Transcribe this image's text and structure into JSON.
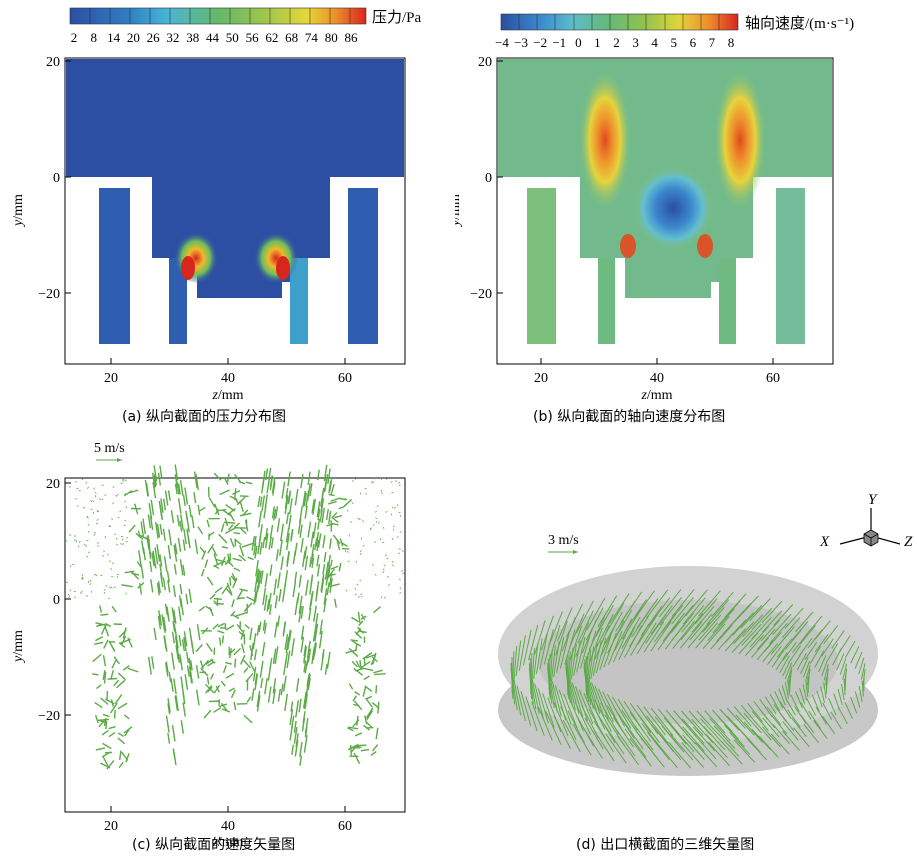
{
  "panel_a": {
    "colorbar_title": "压力/Pa",
    "colorbar_ticks": [
      "2",
      "8",
      "14",
      "20",
      "26",
      "32",
      "38",
      "44",
      "50",
      "56",
      "62",
      "68",
      "74",
      "80",
      "86"
    ],
    "caption": "(a) 纵向截面的压力分布图",
    "xlabel_var": "z",
    "xlabel_unit": "/mm",
    "ylabel_var": "y",
    "ylabel_unit": "/mm",
    "xticks": [
      "20",
      "40",
      "60"
    ],
    "yticks": [
      "20",
      "0",
      "−20"
    ]
  },
  "panel_b": {
    "colorbar_title": "轴向速度/(m·s⁻¹)",
    "colorbar_ticks": [
      "−4",
      "−3",
      "−2",
      "−1",
      "0",
      "1",
      "2",
      "3",
      "4",
      "5",
      "6",
      "7",
      "8"
    ],
    "caption": "(b) 纵向截面的轴向速度分布图",
    "xlabel_var": "z",
    "xlabel_unit": "/mm",
    "ylabel_var": "y",
    "ylabel_unit": "/mm",
    "xticks": [
      "20",
      "40",
      "60"
    ],
    "yticks": [
      "20",
      "0",
      "−20"
    ]
  },
  "panel_c": {
    "scale_label": "5 m/s",
    "caption": "(c) 纵向截面的速度矢量图",
    "xlabel_var": "z",
    "xlabel_unit": "/mm",
    "ylabel_var": "y",
    "ylabel_unit": "/mm",
    "xticks": [
      "20",
      "40",
      "60"
    ],
    "yticks": [
      "20",
      "0",
      "−20"
    ]
  },
  "panel_d": {
    "scale_label": "3 m/s",
    "caption": "(d) 出口横截面的三维矢量图",
    "axis_x": "X",
    "axis_y": "Y",
    "axis_z": "Z"
  },
  "colors": {
    "deep_blue": "#2d4fa3",
    "green": "#5cb85c",
    "vector_green": "#5aaa46",
    "red": "#d7261e",
    "gray_disk": "#c8c8c8"
  }
}
